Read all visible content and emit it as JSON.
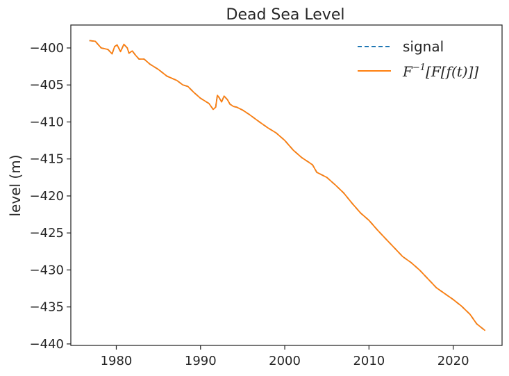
{
  "chart_data": {
    "type": "line",
    "title": "Dead Sea Level",
    "xlabel": "",
    "ylabel": "level (m)",
    "xlim": [
      1974.6,
      2025.8
    ],
    "ylim": [
      -440.2,
      -396.9
    ],
    "x_ticks": [
      1980,
      1990,
      2000,
      2010,
      2020
    ],
    "y_ticks": [
      -400,
      -405,
      -410,
      -415,
      -420,
      -425,
      -430,
      -435,
      -440
    ],
    "tick_format": "unicode-minus",
    "grid": false,
    "legend_position": "top-right",
    "series": [
      {
        "name": "signal",
        "style": "dashed",
        "color": "#1f77b4",
        "x": [
          1976.8,
          1977.5,
          1978.2,
          1979.0,
          1979.5,
          1979.8,
          1980.1,
          1980.5,
          1980.9,
          1981.3,
          1981.5,
          1981.9,
          1982.3,
          1982.7,
          1983.3,
          1984.0,
          1985.0,
          1986.0,
          1987.2,
          1987.9,
          1988.5,
          1989.2,
          1990.0,
          1991.0,
          1991.5,
          1991.8,
          1992.0,
          1992.2,
          1992.5,
          1992.8,
          1993.2,
          1993.5,
          1993.9,
          1994.3,
          1995.0,
          1995.8,
          1997.0,
          1998.0,
          1999.0,
          2000.0,
          2001.0,
          2002.0,
          2002.8,
          2003.3,
          2003.8,
          2005.0,
          2006.0,
          2007.0,
          2008.0,
          2009.0,
          2010.0,
          2011.0,
          2012.0,
          2013.0,
          2014.0,
          2015.0,
          2016.0,
          2017.0,
          2018.0,
          2019.0,
          2020.0,
          2021.0,
          2022.0,
          2022.8,
          2023.8
        ],
        "values": [
          -399.0,
          -399.1,
          -400.0,
          -400.2,
          -400.8,
          -399.8,
          -399.6,
          -400.5,
          -399.5,
          -400.0,
          -400.7,
          -400.4,
          -401.0,
          -401.5,
          -401.5,
          -402.2,
          -402.9,
          -403.8,
          -404.4,
          -405.0,
          -405.2,
          -406.0,
          -406.8,
          -407.5,
          -408.3,
          -408.0,
          -406.4,
          -406.7,
          -407.3,
          -406.5,
          -407.0,
          -407.6,
          -407.9,
          -408.0,
          -408.4,
          -409.0,
          -410.0,
          -410.8,
          -411.5,
          -412.5,
          -413.8,
          -414.8,
          -415.4,
          -415.8,
          -416.8,
          -417.5,
          -418.5,
          -419.6,
          -421.0,
          -422.3,
          -423.3,
          -424.6,
          -425.8,
          -427.0,
          -428.2,
          -429.0,
          -430.0,
          -431.2,
          -432.4,
          -433.2,
          -434.0,
          -434.9,
          -436.0,
          -437.3,
          -438.2
        ]
      },
      {
        "name": "F⁻¹[F[f(t)]]",
        "style": "solid",
        "color": "#ff7f0e",
        "x": [
          1976.8,
          1977.5,
          1978.2,
          1979.0,
          1979.5,
          1979.8,
          1980.1,
          1980.5,
          1980.9,
          1981.3,
          1981.5,
          1981.9,
          1982.3,
          1982.7,
          1983.3,
          1984.0,
          1985.0,
          1986.0,
          1987.2,
          1987.9,
          1988.5,
          1989.2,
          1990.0,
          1991.0,
          1991.5,
          1991.8,
          1992.0,
          1992.2,
          1992.5,
          1992.8,
          1993.2,
          1993.5,
          1993.9,
          1994.3,
          1995.0,
          1995.8,
          1997.0,
          1998.0,
          1999.0,
          2000.0,
          2001.0,
          2002.0,
          2002.8,
          2003.3,
          2003.8,
          2005.0,
          2006.0,
          2007.0,
          2008.0,
          2009.0,
          2010.0,
          2011.0,
          2012.0,
          2013.0,
          2014.0,
          2015.0,
          2016.0,
          2017.0,
          2018.0,
          2019.0,
          2020.0,
          2021.0,
          2022.0,
          2022.8,
          2023.8
        ],
        "values": [
          -399.0,
          -399.1,
          -400.0,
          -400.2,
          -400.8,
          -399.8,
          -399.6,
          -400.5,
          -399.5,
          -400.0,
          -400.7,
          -400.4,
          -401.0,
          -401.5,
          -401.5,
          -402.2,
          -402.9,
          -403.8,
          -404.4,
          -405.0,
          -405.2,
          -406.0,
          -406.8,
          -407.5,
          -408.3,
          -408.0,
          -406.4,
          -406.7,
          -407.3,
          -406.5,
          -407.0,
          -407.6,
          -407.9,
          -408.0,
          -408.4,
          -409.0,
          -410.0,
          -410.8,
          -411.5,
          -412.5,
          -413.8,
          -414.8,
          -415.4,
          -415.8,
          -416.8,
          -417.5,
          -418.5,
          -419.6,
          -421.0,
          -422.3,
          -423.3,
          -424.6,
          -425.8,
          -427.0,
          -428.2,
          -429.0,
          -430.0,
          -431.2,
          -432.4,
          -433.2,
          -434.0,
          -434.9,
          -436.0,
          -437.3,
          -438.2
        ]
      }
    ],
    "legend": {
      "signal_label": "signal",
      "transform_label": {
        "pre": "F",
        "sup": "−1",
        "post": "[F[f(t)]]"
      }
    }
  }
}
